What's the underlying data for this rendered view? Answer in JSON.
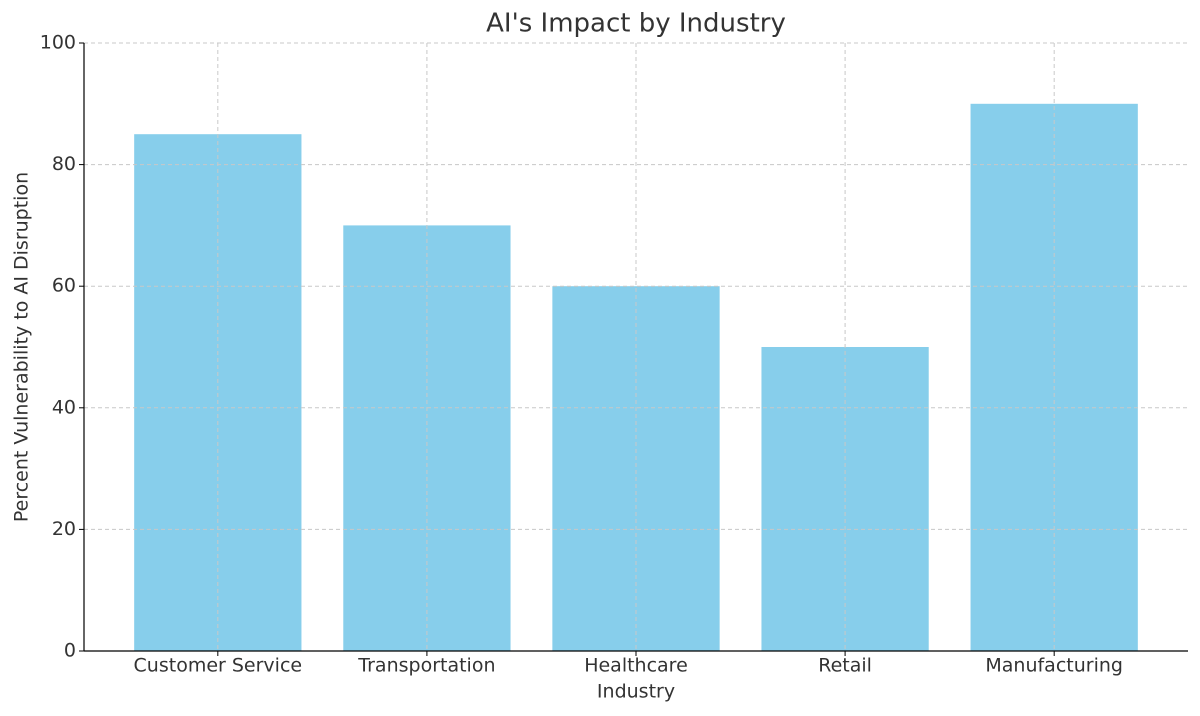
{
  "chart_data": {
    "type": "bar",
    "title": "AI's Impact by Industry",
    "x_label": "Industry",
    "y_label": "Percent Vulnerability to AI Disruption",
    "categories": [
      "Customer Service",
      "Transportation",
      "Healthcare",
      "Retail",
      "Manufacturing"
    ],
    "values": [
      85,
      70,
      60,
      50,
      90
    ],
    "color": "#87ceeb",
    "ylim": [
      0,
      100
    ],
    "yticks": [
      0,
      20,
      40,
      60,
      80,
      100
    ],
    "grid": true
  }
}
